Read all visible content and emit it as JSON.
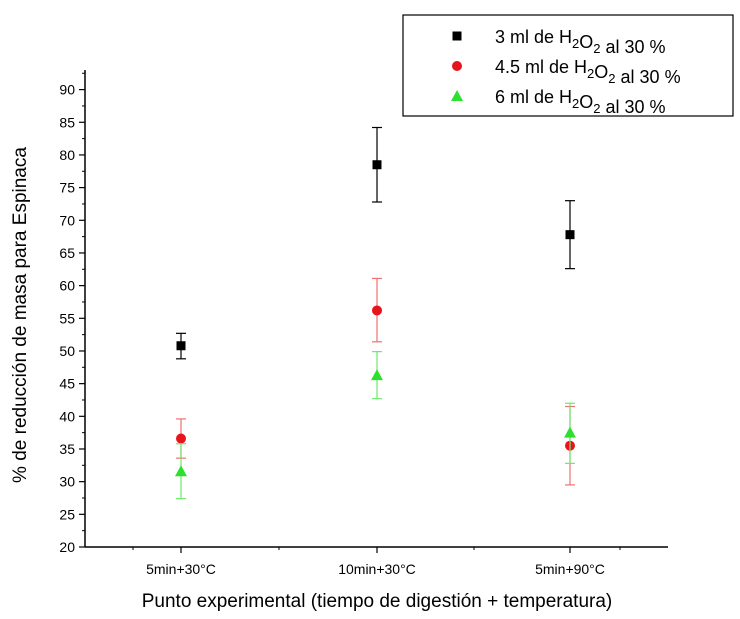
{
  "chart_data": {
    "type": "scatter",
    "categories": [
      "5min+30°C",
      "10min+30°C",
      "5min+90°C"
    ],
    "xlabel": "Punto experimental (tiempo de digestión + temperatura)",
    "ylabel": "% de reducción de masa para Espinaca",
    "ylim": [
      20,
      93
    ],
    "yticks": [
      20,
      25,
      30,
      35,
      40,
      45,
      50,
      55,
      60,
      65,
      70,
      75,
      80,
      85,
      90
    ],
    "grid": false,
    "legend_position": "top-right",
    "series": [
      {
        "name": "3 ml de H2O2 al 30 %",
        "legend": {
          "pre": "3 ml de H",
          "sub1": "2",
          "mid": "O",
          "sub2": "2",
          "post": " al 30 %"
        },
        "marker": "square",
        "color": "#000000",
        "error_color": "#000000",
        "values": [
          50.8,
          78.5,
          67.8
        ],
        "error_low": [
          48.8,
          72.8,
          62.6
        ],
        "error_high": [
          52.7,
          84.2,
          73.0
        ]
      },
      {
        "name": "4.5 ml de H2O2 al 30 %",
        "legend": {
          "pre": "4.5 ml de H",
          "sub1": "2",
          "mid": "O",
          "sub2": "2",
          "post": " al 30 %"
        },
        "marker": "circle",
        "color": "#e8141c",
        "error_color": "#ee7070",
        "values": [
          36.6,
          56.2,
          35.5
        ],
        "error_low": [
          33.6,
          51.4,
          29.5
        ],
        "error_high": [
          39.6,
          61.1,
          41.5
        ]
      },
      {
        "name": "6 ml de H2O2 al 30 %",
        "legend": {
          "pre": "6 ml de H",
          "sub1": "2",
          "mid": "O",
          "sub2": "2",
          "post": " al 30 %"
        },
        "marker": "triangle",
        "color": "#2ee02e",
        "error_color": "#6ee86e",
        "values": [
          31.6,
          46.3,
          37.5
        ],
        "error_low": [
          27.4,
          42.7,
          32.8
        ],
        "error_high": [
          35.8,
          49.9,
          42.0
        ]
      }
    ]
  }
}
